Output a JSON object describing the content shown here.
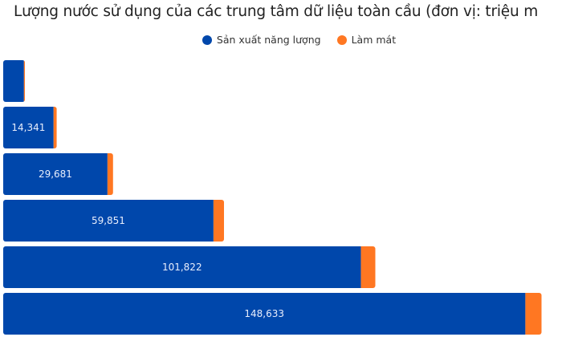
{
  "chart_data": {
    "type": "bar",
    "orientation": "horizontal",
    "stacked": true,
    "title": "Lượng nước sử dụng của các trung tâm dữ liệu toàn cầu (đơn vị: triệu m",
    "categories": [
      "",
      "",
      "",
      "",
      "",
      ""
    ],
    "series": [
      {
        "name": "Sản xuất năng lượng",
        "color": "#0047AB",
        "values": [
          5900,
          14341,
          29681,
          59851,
          101822,
          148633
        ],
        "labels": [
          "",
          "14,341",
          "29,681",
          "59,851",
          "101,822",
          "148,633"
        ]
      },
      {
        "name": "Làm mát",
        "color": "#FF7722",
        "values": [
          300,
          900,
          1600,
          3000,
          4100,
          4600
        ]
      }
    ],
    "xlim": [
      0,
      149000
    ],
    "grid": false,
    "legend": "top-center"
  }
}
